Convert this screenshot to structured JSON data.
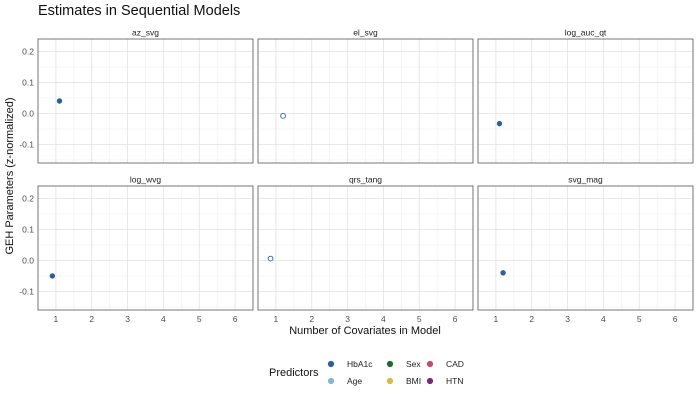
{
  "chart_data": {
    "type": "scatter",
    "title": "Estimates in Sequential Models",
    "xlabel": "Number of Covariates in Model",
    "ylabel": "GEH Parameters (z-normalized)",
    "xlim": [
      0.5,
      6.5
    ],
    "ylim": [
      -0.16,
      0.24
    ],
    "x_ticks": [
      "1",
      "2",
      "3",
      "4",
      "5",
      "6"
    ],
    "y_ticks": [
      "-0.1",
      "0.0",
      "0.1",
      "0.2"
    ],
    "grid": true,
    "legend_position": "bottom",
    "legend_title": "Predictors",
    "legend": [
      {
        "label": "HbA1c",
        "color": "#2c5f9e"
      },
      {
        "label": "Age",
        "color": "#7fb8d6"
      },
      {
        "label": "Sex",
        "color": "#1e6b2f"
      },
      {
        "label": "BMI",
        "color": "#d9b84a"
      },
      {
        "label": "CAD",
        "color": "#c64a6a"
      },
      {
        "label": "HTN",
        "color": "#7a2b6f"
      }
    ],
    "panels": [
      {
        "name": "az_svg",
        "points": [
          {
            "x": 1.1,
            "y": 0.04,
            "series": "HbA1c",
            "filled": true
          }
        ]
      },
      {
        "name": "el_svg",
        "points": [
          {
            "x": 1.2,
            "y": -0.008,
            "series": "HbA1c",
            "filled": false
          }
        ]
      },
      {
        "name": "log_auc_qt",
        "points": [
          {
            "x": 1.1,
            "y": -0.033,
            "series": "HbA1c",
            "filled": true
          }
        ]
      },
      {
        "name": "log_wvg",
        "points": [
          {
            "x": 0.9,
            "y": -0.05,
            "series": "HbA1c",
            "filled": true
          }
        ]
      },
      {
        "name": "qrs_tang",
        "points": [
          {
            "x": 0.85,
            "y": 0.006,
            "series": "HbA1c",
            "filled": false
          }
        ]
      },
      {
        "name": "svg_mag",
        "points": [
          {
            "x": 1.2,
            "y": -0.04,
            "series": "HbA1c",
            "filled": true
          }
        ]
      }
    ]
  }
}
